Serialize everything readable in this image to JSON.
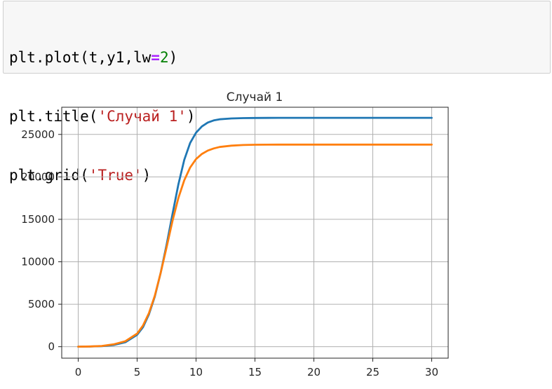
{
  "code": {
    "lines": [
      [
        {
          "text": "plt.plot(t,y1,lw",
          "kind": "plain"
        },
        {
          "text": "=",
          "kind": "op"
        },
        {
          "text": "2",
          "kind": "num"
        },
        {
          "text": ")",
          "kind": "plain"
        }
      ],
      [
        {
          "text": "plt.title(",
          "kind": "plain"
        },
        {
          "text": "'Случай 1'",
          "kind": "str"
        },
        {
          "text": ")",
          "kind": "plain"
        }
      ],
      [
        {
          "text": "plt.grid(",
          "kind": "plain"
        },
        {
          "text": "'True'",
          "kind": "str"
        },
        {
          "text": ")",
          "kind": "plain"
        }
      ]
    ]
  },
  "chart_data": {
    "type": "line",
    "title": "Случай 1",
    "xlabel": "",
    "ylabel": "",
    "xlim": [
      -1.4,
      31.4
    ],
    "ylim": [
      -1350,
      28200
    ],
    "xticks": [
      0,
      5,
      10,
      15,
      20,
      25,
      30
    ],
    "yticks": [
      0,
      5000,
      10000,
      15000,
      20000,
      25000
    ],
    "grid": true,
    "legend": "none",
    "series": [
      {
        "color": "#1f77b4",
        "x": [
          0,
          1,
          2,
          3,
          4,
          5,
          5.5,
          6,
          6.5,
          7,
          7.5,
          8,
          8.5,
          9,
          9.5,
          10,
          10.5,
          11,
          11.5,
          12,
          13,
          14,
          15,
          17,
          20,
          25,
          30
        ],
        "y": [
          0,
          20,
          60,
          200,
          520,
          1400,
          2300,
          3800,
          5900,
          8700,
          12000,
          15600,
          19100,
          22000,
          24000,
          25200,
          25950,
          26400,
          26650,
          26780,
          26880,
          26920,
          26940,
          26950,
          26950,
          26950,
          26950
        ]
      },
      {
        "color": "#ff7f0e",
        "x": [
          0,
          1,
          2,
          3,
          4,
          5,
          5.5,
          6,
          6.5,
          7,
          7.5,
          8,
          8.5,
          9,
          9.5,
          10,
          10.5,
          11,
          11.5,
          12,
          13,
          14,
          15,
          17,
          20,
          25,
          30
        ],
        "y": [
          0,
          30,
          90,
          280,
          650,
          1550,
          2500,
          3950,
          6000,
          8700,
          11700,
          14800,
          17500,
          19600,
          21100,
          22100,
          22700,
          23100,
          23350,
          23520,
          23680,
          23750,
          23780,
          23800,
          23800,
          23800,
          23800
        ]
      }
    ]
  }
}
